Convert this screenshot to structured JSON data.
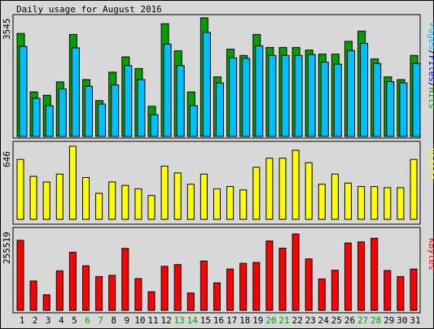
{
  "title": "Daily usage for August 2016",
  "days": [
    "1",
    "2",
    "3",
    "4",
    "5",
    "6",
    "7",
    "8",
    "9",
    "10",
    "11",
    "12",
    "13",
    "14",
    "15",
    "16",
    "17",
    "18",
    "19",
    "20",
    "21",
    "22",
    "23",
    "24",
    "25",
    "26",
    "27",
    "28",
    "29",
    "30",
    "31"
  ],
  "weekend_days": [
    "6",
    "7",
    "13",
    "14",
    "20",
    "21",
    "27",
    "28"
  ],
  "colors": {
    "background": "#d8d8d8",
    "hits": "#00a000",
    "files": "#00bfff",
    "pages": "#00e0ff",
    "visits": "#ffff00",
    "kbytes": "#ff0000",
    "weekday_label": "#000000",
    "weekend_label": "#00a000",
    "hits_label": "#00a000",
    "files_label": "#0000ff",
    "pages_label": "#00bfff",
    "visits_label": "#ffff00",
    "kbytes_label": "#ff0000"
  },
  "chart_data": [
    {
      "type": "bar",
      "title": "Daily usage for August 2016",
      "categories": [
        "1",
        "2",
        "3",
        "4",
        "5",
        "6",
        "7",
        "8",
        "9",
        "10",
        "11",
        "12",
        "13",
        "14",
        "15",
        "16",
        "17",
        "18",
        "19",
        "20",
        "21",
        "22",
        "23",
        "24",
        "25",
        "26",
        "27",
        "28",
        "29",
        "30",
        "31"
      ],
      "ylabel_parts": [
        "Pages",
        "Files",
        "Hits"
      ],
      "max_label": "3545",
      "ylim": [
        0,
        3545
      ],
      "series": [
        {
          "name": "Hits",
          "values": [
            3080,
            1330,
            1230,
            1630,
            3050,
            1700,
            1070,
            1920,
            2380,
            2030,
            900,
            3370,
            2560,
            1330,
            3545,
            1780,
            2610,
            2420,
            3050,
            2660,
            2660,
            2660,
            2580,
            2460,
            2460,
            2840,
            3150,
            2320,
            1780,
            1700,
            2420
          ]
        },
        {
          "name": "Files",
          "values": [
            2690,
            1140,
            920,
            1420,
            2650,
            1500,
            970,
            1540,
            2120,
            1700,
            650,
            2760,
            2120,
            920,
            3110,
            1600,
            2350,
            2330,
            2710,
            2420,
            2420,
            2420,
            2450,
            2220,
            2160,
            2570,
            2780,
            2180,
            1640,
            1600,
            2180
          ]
        },
        {
          "name": "Pages",
          "values": [
            2690,
            1140,
            920,
            1420,
            2650,
            1500,
            970,
            1540,
            2120,
            1700,
            650,
            2760,
            2120,
            920,
            3110,
            1600,
            2350,
            2330,
            2710,
            2420,
            2420,
            2420,
            2450,
            2220,
            2160,
            2570,
            2780,
            2180,
            1640,
            1600,
            2180
          ]
        }
      ]
    },
    {
      "type": "bar",
      "categories": [
        "1",
        "2",
        "3",
        "4",
        "5",
        "6",
        "7",
        "8",
        "9",
        "10",
        "11",
        "12",
        "13",
        "14",
        "15",
        "16",
        "17",
        "18",
        "19",
        "20",
        "21",
        "22",
        "23",
        "24",
        "25",
        "26",
        "27",
        "28",
        "29",
        "30",
        "31"
      ],
      "ylabel": "Visits",
      "max_label": "646",
      "ylim": [
        0,
        646
      ],
      "series": [
        {
          "name": "Visits",
          "values": [
            530,
            380,
            330,
            400,
            646,
            370,
            230,
            330,
            300,
            270,
            210,
            470,
            410,
            310,
            400,
            270,
            290,
            260,
            460,
            540,
            540,
            610,
            500,
            310,
            400,
            320,
            290,
            290,
            280,
            280,
            530
          ]
        }
      ]
    },
    {
      "type": "bar",
      "categories": [
        "1",
        "2",
        "3",
        "4",
        "5",
        "6",
        "7",
        "8",
        "9",
        "10",
        "11",
        "12",
        "13",
        "14",
        "15",
        "16",
        "17",
        "18",
        "19",
        "20",
        "21",
        "22",
        "23",
        "24",
        "25",
        "26",
        "27",
        "28",
        "29",
        "30",
        "31"
      ],
      "ylabel": "KBytes",
      "max_label": "255519",
      "ylim": [
        0,
        255519
      ],
      "series": [
        {
          "name": "KBytes",
          "values": [
            234000,
            98000,
            52000,
            132000,
            194000,
            149000,
            113000,
            117000,
            207000,
            106000,
            62000,
            147000,
            153000,
            58000,
            165000,
            92000,
            138000,
            157000,
            160000,
            232000,
            208000,
            255519,
            172000,
            105000,
            134000,
            225000,
            229000,
            241000,
            133000,
            113000,
            138000
          ]
        }
      ]
    }
  ]
}
